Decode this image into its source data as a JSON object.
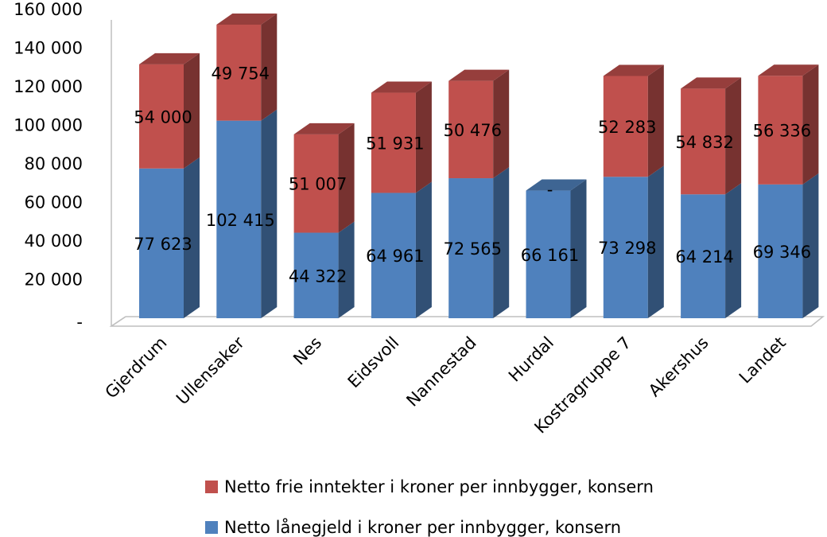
{
  "chart_data": {
    "type": "bar",
    "stacked": true,
    "three_d": true,
    "categories": [
      "Gjerdrum",
      "Ullensaker",
      "Nes",
      "Eidsvoll",
      "Nannestad",
      "Hurdal",
      "Kostragruppe 7",
      "Akershus",
      "Landet"
    ],
    "series": [
      {
        "name": "Netto lånegjeld i kroner per innbygger, konsern",
        "values": [
          77623,
          102415,
          44322,
          64961,
          72565,
          66161,
          73298,
          64214,
          69346
        ],
        "labels": [
          "77 623",
          "102 415",
          "44 322",
          "64 961",
          "72 565",
          "66 161",
          "73 298",
          "64 214",
          "69 346"
        ],
        "color": "#4F81BD"
      },
      {
        "name": "Netto frie inntekter i kroner per innbygger, konsern",
        "values": [
          54000,
          49754,
          51007,
          51931,
          50476,
          0,
          52283,
          54832,
          56336
        ],
        "labels": [
          "54 000",
          "49 754",
          "51 007",
          "51 931",
          "50 476",
          "-",
          "52 283",
          "54 832",
          "56 336"
        ],
        "color": "#C0504D"
      }
    ],
    "yticks": [
      "-",
      "20 000",
      "40 000",
      "60 000",
      "80 000",
      "100 000",
      "120 000",
      "140 000",
      "160 000"
    ],
    "ylim": [
      0,
      160000
    ],
    "grid": false,
    "legend_position": "bottom"
  }
}
